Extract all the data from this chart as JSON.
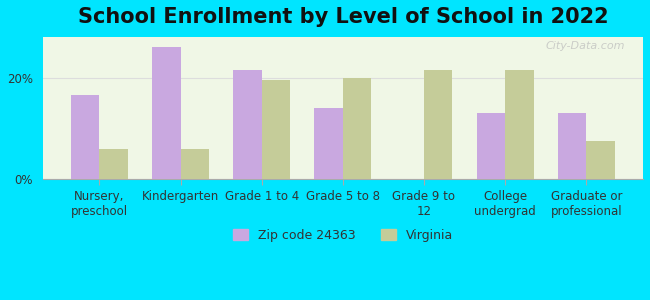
{
  "title": "School Enrollment by Level of School in 2022",
  "categories": [
    "Nursery,\npreschool",
    "Kindergarten",
    "Grade 1 to 4",
    "Grade 5 to 8",
    "Grade 9 to\n12",
    "College\nundergrad",
    "Graduate or\nprofessional"
  ],
  "zip_values": [
    16.5,
    26.0,
    21.5,
    14.0,
    0.0,
    13.0,
    13.0
  ],
  "va_values": [
    6.0,
    6.0,
    19.5,
    20.0,
    21.5,
    21.5,
    7.5
  ],
  "zip_color": "#c9a8e0",
  "va_color": "#c5cc99",
  "background_outer": "#00e5ff",
  "background_inner": "#f0f7e6",
  "ylim": [
    0,
    28
  ],
  "yticks": [
    0,
    20
  ],
  "ytick_labels": [
    "0%",
    "20%"
  ],
  "zip_label": "Zip code 24363",
  "va_label": "Virginia",
  "watermark": "City-Data.com",
  "title_fontsize": 15,
  "tick_fontsize": 8.5,
  "legend_fontsize": 9
}
